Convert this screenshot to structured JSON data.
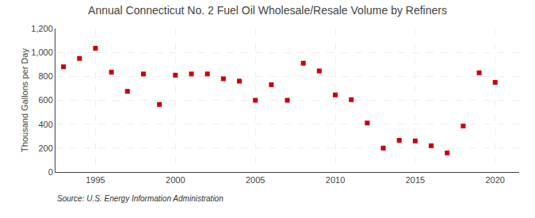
{
  "chart_data": {
    "type": "scatter",
    "title": "Annual Connecticut No. 2 Fuel Oil Wholesale/Resale Volume by Refiners",
    "ylabel": "Thousand Gallons per Day",
    "source": "Source: U.S. Energy Information Administration",
    "x": [
      1993,
      1994,
      1995,
      1996,
      1997,
      1998,
      1999,
      2000,
      2001,
      2002,
      2003,
      2004,
      2005,
      2006,
      2007,
      2008,
      2009,
      2010,
      2011,
      2012,
      2013,
      2014,
      2015,
      2016,
      2017,
      2018,
      2019,
      2020
    ],
    "values": [
      880,
      950,
      1035,
      835,
      675,
      820,
      565,
      810,
      820,
      820,
      780,
      760,
      600,
      730,
      600,
      910,
      845,
      645,
      605,
      410,
      200,
      265,
      260,
      220,
      160,
      385,
      830,
      750
    ],
    "color": "#cc0000",
    "marker": "square",
    "xlim": [
      1992.5,
      2021.5
    ],
    "xticks": [
      1995,
      2000,
      2005,
      2010,
      2015,
      2020
    ],
    "ylim": [
      0,
      1200
    ],
    "yticks": [
      0,
      200,
      400,
      600,
      800,
      {
        "value": 1000,
        "label": "1,000"
      },
      {
        "value": 1200,
        "label": "1,200"
      }
    ],
    "grid": true
  }
}
